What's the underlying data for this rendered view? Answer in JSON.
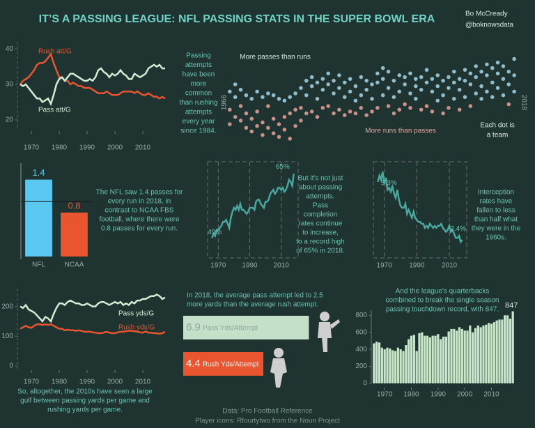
{
  "title": "IT’S A PASSING LEAGUE: NFL PASSING STATS IN THE SUPER BOWL ERA",
  "author": [
    "Bo McCready",
    "@boknowsdata"
  ],
  "source": [
    "Data: Pro Football Reference",
    "Player icons: Rfourtytwo from the Noun Project"
  ],
  "chart_data": [
    {
      "type": "line",
      "x": [
        1966,
        1967,
        1968,
        1969,
        1970,
        1971,
        1972,
        1973,
        1974,
        1975,
        1976,
        1977,
        1978,
        1979,
        1980,
        1981,
        1982,
        1983,
        1984,
        1985,
        1986,
        1987,
        1988,
        1989,
        1990,
        1991,
        1992,
        1993,
        1994,
        1995,
        1996,
        1997,
        1998,
        1999,
        2000,
        2001,
        2002,
        2003,
        2004,
        2005,
        2006,
        2007,
        2008,
        2009,
        2010,
        2011,
        2012,
        2013,
        2014,
        2015,
        2016,
        2017,
        2018
      ],
      "series": [
        {
          "name": "Rush att/G",
          "color": "#e8552f",
          "values": [
            30,
            31,
            31.5,
            32,
            33,
            34,
            35.5,
            36,
            36,
            36.5,
            37.5,
            38.5,
            36,
            34,
            32,
            32,
            31,
            31,
            30,
            30.5,
            30,
            29.5,
            29.5,
            29,
            29,
            29,
            28.5,
            28,
            27.5,
            27.5,
            27.5,
            28,
            27.5,
            27,
            27,
            27,
            27.5,
            28,
            28,
            28,
            28,
            27.5,
            28,
            27.5,
            27,
            27,
            27.5,
            27,
            26.5,
            26.5,
            26,
            26.5,
            26
          ]
        },
        {
          "name": "Pass att/G",
          "color": "#d5ecd4",
          "values": [
            30,
            29.5,
            30,
            29,
            28,
            27,
            26,
            26,
            25,
            25.5,
            26,
            24.5,
            27,
            30,
            31.5,
            32,
            31,
            32,
            33,
            33,
            32.5,
            32,
            31.5,
            31,
            31,
            31.5,
            31,
            32,
            34,
            34.5,
            33.5,
            33,
            32,
            33,
            32.5,
            33,
            34,
            33,
            32.5,
            31.5,
            31.5,
            33,
            32.5,
            32,
            32.5,
            33,
            34.5,
            35,
            35.5,
            35,
            35.5,
            34.5,
            34.5
          ]
        }
      ],
      "xlim": [
        1965,
        2019
      ],
      "xticks": [
        1970,
        1980,
        1990,
        2000,
        2010
      ],
      "ylim": [
        18,
        42
      ],
      "yticks": [
        20,
        30,
        40
      ],
      "annotation": [
        "Passing",
        "attempts",
        "have been",
        "more",
        "common",
        "than rushing",
        "attempts",
        "every year",
        "since 1984."
      ]
    },
    {
      "type": "dot-strip",
      "x": [
        1966,
        1967,
        1968,
        1969,
        1970,
        1971,
        1972,
        1973,
        1974,
        1975,
        1976,
        1977,
        1978,
        1979,
        1980,
        1981,
        1982,
        1983,
        1984,
        1985,
        1986,
        1987,
        1988,
        1989,
        1990,
        1991,
        1992,
        1993,
        1994,
        1995,
        1996,
        1997,
        1998,
        1999,
        2000,
        2001,
        2002,
        2003,
        2004,
        2005,
        2006,
        2007,
        2008,
        2009,
        2010,
        2011,
        2012,
        2013,
        2014,
        2015,
        2016,
        2017,
        2018
      ],
      "values": [
        [
          6,
          -4,
          -12
        ],
        [
          3,
          -8,
          10
        ],
        [
          -2,
          7,
          -10
        ],
        [
          -6,
          4,
          -14
        ],
        [
          2,
          -9,
          -16
        ],
        [
          -5,
          6,
          -13
        ],
        [
          -11,
          3,
          -18
        ],
        [
          -14,
          -2,
          5
        ],
        [
          -9,
          -17,
          4
        ],
        [
          -12,
          2,
          -19
        ],
        [
          -15,
          1,
          -8
        ],
        [
          -20,
          -6,
          3
        ],
        [
          -13,
          5,
          -4
        ],
        [
          -3,
          8,
          -10
        ],
        [
          4,
          12,
          -6
        ],
        [
          9,
          -5,
          14
        ],
        [
          2,
          11,
          -8
        ],
        [
          7,
          -3,
          13
        ],
        [
          10,
          -2,
          16
        ],
        [
          5,
          12,
          -6
        ],
        [
          8,
          -4,
          15
        ],
        [
          3,
          11,
          -7
        ],
        [
          6,
          -5,
          13
        ],
        [
          9,
          1,
          -6
        ],
        [
          4,
          14,
          -3
        ],
        [
          -7,
          7,
          12
        ],
        [
          2,
          10,
          -5
        ],
        [
          11,
          -3,
          16
        ],
        [
          13,
          4,
          19
        ],
        [
          8,
          17,
          -2
        ],
        [
          12,
          3,
          -6
        ],
        [
          6,
          15,
          -4
        ],
        [
          10,
          -1,
          14
        ],
        [
          5,
          16,
          -3
        ],
        [
          9,
          2,
          13
        ],
        [
          14,
          -4,
          7
        ],
        [
          11,
          18,
          -2
        ],
        [
          6,
          -5,
          13
        ],
        [
          9,
          1,
          15
        ],
        [
          4,
          12,
          -6
        ],
        [
          8,
          -3,
          14
        ],
        [
          11,
          2,
          17
        ],
        [
          7,
          -4,
          13
        ],
        [
          12,
          3,
          18
        ],
        [
          10,
          16,
          -2
        ],
        [
          14,
          5,
          20
        ],
        [
          9,
          17,
          2
        ],
        [
          15,
          6,
          21
        ],
        [
          11,
          19,
          3
        ],
        [
          16,
          8,
          22
        ],
        [
          13,
          20,
          4
        ],
        [
          10,
          17,
          -1
        ],
        [
          15,
          24,
          6
        ]
      ],
      "positive_color": "#a6d6e8",
      "negative_color": "#e8a39b",
      "xlim": [
        1965,
        2019
      ],
      "positive_label": "More passes than runs",
      "negative_label": "More runs than passes",
      "note": [
        "Each dot is",
        "a team"
      ]
    },
    {
      "type": "bar",
      "categories": [
        "NFL",
        "NCAA"
      ],
      "values": [
        1.4,
        0.8
      ],
      "colors": [
        "#5ac8f0",
        "#e8552f"
      ],
      "ylim": [
        0,
        1.7
      ],
      "reference_line": 1,
      "annotation": [
        "The NFL saw 1.4 passes for",
        "every run in 2018, in",
        "contrast to NCAA FBS",
        "football, where there were",
        "0.8 passes for every run."
      ]
    },
    {
      "type": "line",
      "x": [
        1966,
        1967,
        1968,
        1969,
        1970,
        1971,
        1972,
        1973,
        1974,
        1975,
        1976,
        1977,
        1978,
        1979,
        1980,
        1981,
        1982,
        1983,
        1984,
        1985,
        1986,
        1987,
        1988,
        1989,
        1990,
        1991,
        1992,
        1993,
        1994,
        1995,
        1996,
        1997,
        1998,
        1999,
        2000,
        2001,
        2002,
        2003,
        2004,
        2005,
        2006,
        2007,
        2008,
        2009,
        2010,
        2011,
        2012,
        2013,
        2014,
        2015,
        2016,
        2017,
        2018
      ],
      "values": [
        49,
        50,
        49.5,
        51,
        51,
        51.5,
        52,
        53,
        53,
        53.5,
        52.5,
        51.5,
        54,
        55.5,
        56.5,
        56,
        57,
        56,
        57.5,
        56,
        56,
        55.5,
        55,
        55.5,
        56.5,
        56.5,
        56.5,
        56,
        58,
        58.5,
        58.5,
        57.5,
        57,
        56.5,
        58,
        58,
        58.5,
        60,
        60.5,
        61,
        60,
        60.5,
        61.5,
        61.5,
        61,
        61.5,
        60.5,
        61,
        62,
        63.5,
        63,
        62,
        65
      ],
      "value_labels": [
        "49%",
        null,
        null,
        null,
        null,
        null,
        null,
        null,
        null,
        null,
        null,
        null,
        null,
        null,
        null,
        null,
        null,
        null,
        null,
        null,
        null,
        null,
        null,
        null,
        null,
        null,
        null,
        null,
        null,
        null,
        null,
        null,
        null,
        null,
        null,
        null,
        null,
        null,
        null,
        null,
        null,
        null,
        null,
        null,
        null,
        null,
        null,
        null,
        null,
        null,
        null,
        null,
        "65%"
      ],
      "color": "#48a79e",
      "xlim": [
        1965,
        2019
      ],
      "xticks": [
        1970,
        1990,
        2010
      ],
      "ylim": [
        44,
        68
      ],
      "annotation": [
        "But it's not just",
        "about passing",
        "attempts.",
        "Pass",
        "completion",
        "rates continue",
        "to increase,",
        "to a record high",
        "of 65% in 2018."
      ]
    },
    {
      "type": "line",
      "x": [
        1966,
        1967,
        1968,
        1969,
        1970,
        1971,
        1972,
        1973,
        1974,
        1975,
        1976,
        1977,
        1978,
        1979,
        1980,
        1981,
        1982,
        1983,
        1984,
        1985,
        1986,
        1987,
        1988,
        1989,
        1990,
        1991,
        1992,
        1993,
        1994,
        1995,
        1996,
        1997,
        1998,
        1999,
        2000,
        2001,
        2002,
        2003,
        2004,
        2005,
        2006,
        2007,
        2008,
        2009,
        2010,
        2011,
        2012,
        2013,
        2014,
        2015,
        2016,
        2017,
        2018
      ],
      "values": [
        5.3,
        5.6,
        5.4,
        5.8,
        5.2,
        5.5,
        4.9,
        5.0,
        4.8,
        5.1,
        4.7,
        4.5,
        4.9,
        4.4,
        4.1,
        4.0,
        4.0,
        4.2,
        3.7,
        3.9,
        3.7,
        3.5,
        3.8,
        3.5,
        3.4,
        3.3,
        3.3,
        3.2,
        3.2,
        3.0,
        3.1,
        3.0,
        3.2,
        3.1,
        3.0,
        3.1,
        3.0,
        3.1,
        3.1,
        3.2,
        3.0,
        2.9,
        2.8,
        2.9,
        3.1,
        2.8,
        2.9,
        2.7,
        2.5,
        2.5,
        2.6,
        2.3,
        2.4
      ],
      "value_labels": [
        "5.3%",
        null,
        null,
        null,
        null,
        null,
        null,
        null,
        null,
        null,
        null,
        null,
        null,
        null,
        null,
        null,
        null,
        null,
        null,
        null,
        null,
        null,
        null,
        null,
        null,
        null,
        null,
        null,
        null,
        null,
        null,
        null,
        null,
        null,
        null,
        null,
        null,
        null,
        null,
        null,
        null,
        null,
        null,
        null,
        null,
        null,
        null,
        null,
        null,
        null,
        null,
        null,
        "2.4%"
      ],
      "color": "#48a79e",
      "xlim": [
        1965,
        2019
      ],
      "xticks": [
        1970,
        1990,
        2010
      ],
      "ylim": [
        1.5,
        6.3
      ],
      "annotation": [
        "Interception",
        "rates have",
        "fallen to less",
        "than half what",
        "they were in the",
        "1960s."
      ]
    },
    {
      "type": "line",
      "x": [
        1966,
        1967,
        1968,
        1969,
        1970,
        1971,
        1972,
        1973,
        1974,
        1975,
        1976,
        1977,
        1978,
        1979,
        1980,
        1981,
        1982,
        1983,
        1984,
        1985,
        1986,
        1987,
        1988,
        1989,
        1990,
        1991,
        1992,
        1993,
        1994,
        1995,
        1996,
        1997,
        1998,
        1999,
        2000,
        2001,
        2002,
        2003,
        2004,
        2005,
        2006,
        2007,
        2008,
        2009,
        2010,
        2011,
        2012,
        2013,
        2014,
        2015,
        2016,
        2017,
        2018
      ],
      "series": [
        {
          "name": "Pass yds/G",
          "color": "#d5ecd4",
          "values": [
            200,
            195,
            205,
            190,
            185,
            180,
            170,
            160,
            150,
            165,
            160,
            150,
            175,
            195,
            210,
            210,
            205,
            215,
            220,
            215,
            210,
            210,
            205,
            205,
            210,
            205,
            200,
            200,
            210,
            215,
            215,
            210,
            205,
            210,
            215,
            210,
            215,
            205,
            210,
            205,
            215,
            210,
            220,
            220,
            225,
            225,
            230,
            235,
            235,
            240,
            235,
            225,
            230
          ]
        },
        {
          "name": "Rush yds/G",
          "color": "#e8552f",
          "values": [
            125,
            130,
            135,
            130,
            128,
            135,
            140,
            140,
            138,
            140,
            138,
            140,
            135,
            130,
            125,
            125,
            120,
            122,
            120,
            120,
            118,
            120,
            118,
            115,
            115,
            115,
            113,
            112,
            110,
            110,
            112,
            115,
            112,
            110,
            110,
            113,
            115,
            115,
            117,
            118,
            118,
            117,
            115,
            113,
            112,
            116,
            112,
            112,
            110,
            110,
            108,
            110,
            115
          ]
        }
      ],
      "xlim": [
        1965,
        2019
      ],
      "xticks": [
        1970,
        1980,
        1990,
        2000,
        2010
      ],
      "ylim": [
        0,
        260
      ],
      "yticks": [
        0,
        100,
        200
      ],
      "annotation": [
        "So, altogether, the 2010s have seen a large",
        "gulf between passing yards per game and",
        "rushing yards per game."
      ]
    },
    {
      "type": "hbar",
      "categories": [
        "Pass Yds/Attempt",
        "Rush Yds/Attempt"
      ],
      "values": [
        6.9,
        4.4
      ],
      "colors": [
        "#c4e0c8",
        "#e8552f"
      ],
      "xlim": [
        0,
        7
      ],
      "annotation": [
        "In 2018, the average pass attempt led to 2.5",
        "more yards than the average rush attempt."
      ]
    },
    {
      "type": "year-bar",
      "x": [
        1966,
        1967,
        1968,
        1969,
        1970,
        1971,
        1972,
        1973,
        1974,
        1975,
        1976,
        1977,
        1978,
        1979,
        1980,
        1981,
        1982,
        1983,
        1984,
        1985,
        1986,
        1987,
        1988,
        1989,
        1990,
        1991,
        1992,
        1993,
        1994,
        1995,
        1996,
        1997,
        1998,
        1999,
        2000,
        2001,
        2002,
        2003,
        2004,
        2005,
        2006,
        2007,
        2008,
        2009,
        2010,
        2011,
        2012,
        2013,
        2014,
        2015,
        2016,
        2017,
        2018
      ],
      "values": [
        470,
        490,
        480,
        420,
        400,
        420,
        410,
        390,
        380,
        420,
        400,
        380,
        450,
        520,
        560,
        570,
        380,
        590,
        600,
        560,
        560,
        540,
        560,
        560,
        580,
        520,
        550,
        550,
        610,
        640,
        640,
        620,
        660,
        640,
        620,
        620,
        680,
        600,
        650,
        680,
        660,
        680,
        690,
        710,
        700,
        720,
        740,
        750,
        750,
        800,
        800,
        760,
        847
      ],
      "color": "#c8e6c9",
      "xlim": [
        1965,
        2019
      ],
      "xticks": [
        1970,
        1980,
        1990,
        2000,
        2010
      ],
      "ylim": [
        0,
        860
      ],
      "yticks": [
        0,
        200,
        400,
        600,
        800
      ],
      "annotation": [
        "And the league's quarterbacks",
        "combined to break the single season",
        "passing touchdown record, with 847."
      ]
    }
  ]
}
